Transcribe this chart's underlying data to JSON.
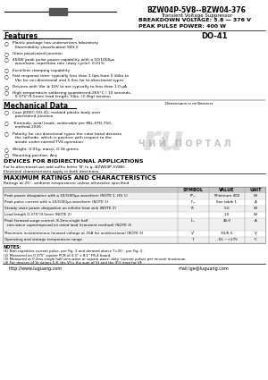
{
  "title": "BZW04P-5V8--BZW04-376",
  "subtitle": "Transient Voltage Suppressor",
  "breakdown_voltage": "BREAKDOWN VOLTAGE: 5.8 — 376 V",
  "peak_pulse_power": "PEAK PULSE POWER: 400 W",
  "package": "DO-41",
  "features_title": "Features",
  "features": [
    "Plastic package has underwriters laboratory\n  flammability classification 94V-0",
    "Glass passivated junction",
    "400W peak pulse power capability with a 10/1000μs\n  waveform, repetition rate (duty cycle): 0.01%",
    "Excellent clamping capability",
    "Fast response time: typically less than 1.0ps from 0 Volts to\n  Vbr for uni-directional and 5.0ns for bi-directional types",
    "Devices with Vbr ≥ 10V to are typically to less than 1.0 μA",
    "High temperature soldering guaranteed:265°C / 10 seconds,\n  0.375\"/9.5mm) lead length, 5lbs. (2.3kg) tension"
  ],
  "mechanical_title": "Mechanical Data",
  "mechanical": [
    "Case JEDEC DO-41, molded plastic body over\n  passivated junction",
    "Terminals: axial leads, solderable per MIL-STD-750,\n  method 2026",
    "Polarity for uni-directional types the color band denotes\n  the cathode, which is positive with respect to the\n  anode under normal TVS operation",
    "Weight: 0.01g, maxis, 0.34 grams",
    "Mounting position: Any"
  ],
  "bidirectional_title": "DEVICES FOR BIDIRECTIONAL APPLICATIONS",
  "bidirectional_text": "For bi-directional use add suffix letter 'B' (e.g. BZW04P-5V8B).\nElectrical characteristics apply in both directions.",
  "max_ratings_title": "MAXIMUM RATINGS AND CHARACTERISTICS",
  "max_ratings_note": "Ratings at 25°, ambient temperature unless otherwise specified",
  "table_headers": [
    "",
    "SYMBOL",
    "VALUE",
    "UNIT"
  ],
  "table_rows": [
    [
      "Peak power dissipation with a 10/1000μs waveform (NOTE 1, HG 1)",
      "Pᵖₘ",
      "Minimum 400",
      "W"
    ],
    [
      "Peak pulse current with a 10/1000μs waveform (NOTE 1)",
      "Iᵖₘ",
      "See table 1",
      "A"
    ],
    [
      "Steady state power dissipation on infinite heat sink (NOTE 2)",
      "P₀",
      "5.0",
      "W"
    ],
    [
      "Lead length 0.375\"/9.5mm (NOTE 2)",
      "",
      "1.0",
      "W"
    ],
    [
      "Peak forward surge current, 8.3ms single half\n  sine-wave superimposed on rated load (transient method) (NOTE 3)",
      "Iᶠₘ",
      "40.0",
      "A"
    ],
    [
      "Maximum instantaneous forward voltage at 25A for unidirectional (NOTE 3)",
      "Vᶠ",
      "3.5/6.5",
      "V"
    ],
    [
      "Operating and storage temperature range",
      "Tⱼ",
      "-55 ~+175",
      "°C"
    ]
  ],
  "notes_title": "NOTES:",
  "notes": [
    "(1) Non-repetitive current pulse, per Fig. 3 and derated above T=25°, per Fig. 2.",
    "(2) Measured on 0.375\" square PCB of 0.1\" x 0.1\" FR-4 board.",
    "(3) Measured at 0.3ms single half sine-wave or square wave; duty (current pulses per minute maximum.",
    "(4) For devices of Vr values 5.8, the Vf is the sum of Vr and the IF/5 drop for VF."
  ],
  "website": "http://www.luguang.com",
  "email": "mail:ige@luguang.com",
  "watermark_ru": "ru",
  "watermark_cyrillic": "Ч И Й   П О Р Т А Л",
  "bg_color": "#ffffff",
  "table_header_bg": "#c8c8c8",
  "table_alt_bg": "#f0f0f0"
}
